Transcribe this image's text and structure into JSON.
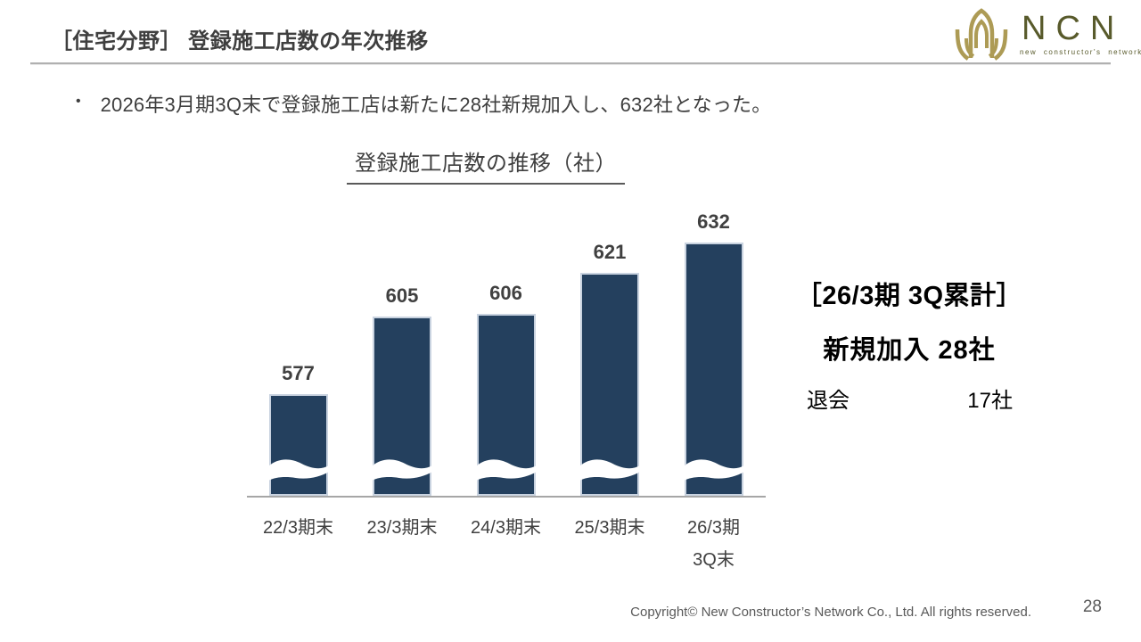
{
  "header": {
    "title": "［住宅分野］ 登録施工店数の年次推移"
  },
  "logo": {
    "name": "NCN",
    "subtext": "new constructor's network",
    "mark_color": "#ad9b55",
    "text_color": "#585a2b"
  },
  "bullet": {
    "marker": "•",
    "text": "2026年3月期3Q末で登録施工店は新たに28社新規加入し、632社となった。"
  },
  "chart_data": {
    "type": "bar",
    "title": "登録施工店数の推移（社）",
    "categories": [
      "22/3期末",
      "23/3期末",
      "24/3期末",
      "25/3期末",
      "26/3期\n3Q末"
    ],
    "values": [
      577,
      605,
      606,
      621,
      632
    ],
    "xlabel": "",
    "ylabel": "社",
    "ylim": [
      540,
      650
    ],
    "grid": false,
    "legend": "none",
    "data_labels_shown": true,
    "axis_break_at_bottom": true,
    "bar_color": "#24405e",
    "bar_border_color": "#c9d3e0",
    "axis_color": "#a6a6a6",
    "label_color": "#404040"
  },
  "summary": {
    "heading": "［26/3期 3Q累計］",
    "line1": "新規加入 28社",
    "line2_label": "退会",
    "line2_value": "17社"
  },
  "footer": {
    "copyright": "Copyright© New Constructor’s Network Co., Ltd. All rights reserved.",
    "page_number": "28"
  }
}
